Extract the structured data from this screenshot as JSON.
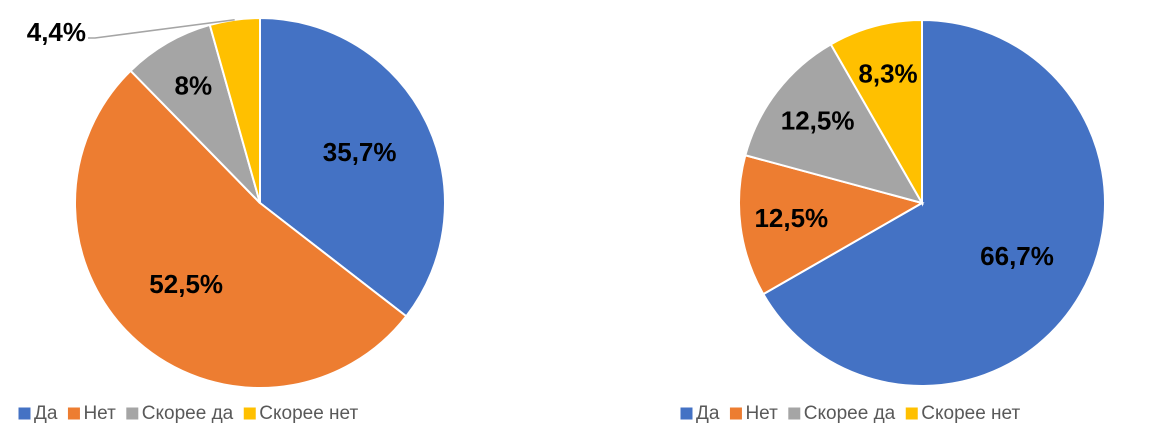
{
  "chart_data": [
    {
      "type": "pie",
      "categories": [
        "Да",
        "Нет",
        "Скорее да",
        "Скорее нет"
      ],
      "values": [
        35.7,
        52.5,
        8,
        4.4
      ],
      "value_labels": [
        "35,7%",
        "52,5%",
        "8%",
        "4,4%"
      ],
      "colors": [
        "#4472c4",
        "#ed7d31",
        "#a5a5a5",
        "#ffc000"
      ]
    },
    {
      "type": "pie",
      "categories": [
        "Да",
        "Нет",
        "Скорее да",
        "Скорее нет"
      ],
      "values": [
        66.7,
        12.5,
        12.5,
        8.3
      ],
      "value_labels": [
        "66,7%",
        "12,5%",
        "12,5%",
        "8,3%"
      ],
      "colors": [
        "#4472c4",
        "#ed7d31",
        "#a5a5a5",
        "#ffc000"
      ]
    }
  ]
}
